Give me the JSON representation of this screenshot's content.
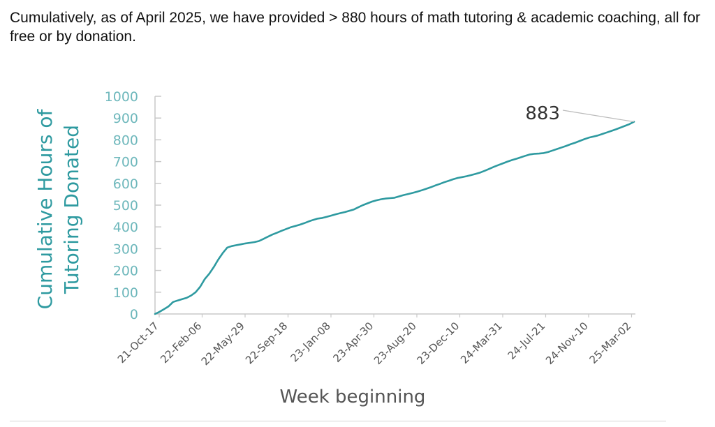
{
  "intro": {
    "text": "Cumulatively, as of April 2025, we have provided > 880 hours of math tutoring & academic coaching, all for free or by donation."
  },
  "colors": {
    "series": "#2E9AA0",
    "axis_line": "#C8C8C8",
    "tick_label": "#6FB8BC",
    "x_tick_label": "#555555",
    "xlabel": "#555555",
    "annotation_text": "#333333",
    "leader_line": "#BBBBBB"
  },
  "chart_data": {
    "type": "line",
    "title": "",
    "xlabel": "Week beginning",
    "ylabel_lines": [
      "Cumulative Hours of",
      "Tutoring Donated"
    ],
    "ylim": [
      0,
      1000
    ],
    "yticks": [
      0,
      100,
      200,
      300,
      400,
      500,
      600,
      700,
      800,
      900,
      1000
    ],
    "xticks": [
      "21-Oct-17",
      "22-Feb-06",
      "22-May-29",
      "22-Sep-18",
      "23-Jan-08",
      "23-Apr-30",
      "23-Aug-20",
      "23-Dec-10",
      "24-Mar-31",
      "24-Jul-21",
      "24-Nov-10",
      "25-Mar-02"
    ],
    "grid": false,
    "legend": "none",
    "annotation": {
      "text": "883",
      "value": 883
    },
    "series": [
      {
        "points": [
          [
            0,
            0
          ],
          [
            1,
            10
          ],
          [
            2,
            22
          ],
          [
            3,
            35
          ],
          [
            4,
            55
          ],
          [
            5,
            62
          ],
          [
            6,
            68
          ],
          [
            7,
            74
          ],
          [
            8,
            85
          ],
          [
            9,
            100
          ],
          [
            10,
            125
          ],
          [
            11,
            160
          ],
          [
            12,
            185
          ],
          [
            13,
            215
          ],
          [
            14,
            250
          ],
          [
            15,
            280
          ],
          [
            16,
            305
          ],
          [
            17,
            312
          ],
          [
            18,
            316
          ],
          [
            19,
            320
          ],
          [
            20,
            324
          ],
          [
            21,
            327
          ],
          [
            22,
            330
          ],
          [
            23,
            335
          ],
          [
            24,
            345
          ],
          [
            25,
            355
          ],
          [
            26,
            365
          ],
          [
            27,
            373
          ],
          [
            28,
            382
          ],
          [
            29,
            390
          ],
          [
            30,
            398
          ],
          [
            31,
            404
          ],
          [
            32,
            410
          ],
          [
            33,
            417
          ],
          [
            34,
            425
          ],
          [
            35,
            432
          ],
          [
            36,
            438
          ],
          [
            37,
            441
          ],
          [
            38,
            446
          ],
          [
            39,
            452
          ],
          [
            40,
            458
          ],
          [
            41,
            463
          ],
          [
            42,
            468
          ],
          [
            43,
            474
          ],
          [
            44,
            480
          ],
          [
            45,
            490
          ],
          [
            46,
            500
          ],
          [
            47,
            508
          ],
          [
            48,
            516
          ],
          [
            49,
            522
          ],
          [
            50,
            527
          ],
          [
            51,
            530
          ],
          [
            52,
            532
          ],
          [
            53,
            534
          ],
          [
            54,
            540
          ],
          [
            55,
            546
          ],
          [
            56,
            551
          ],
          [
            57,
            556
          ],
          [
            58,
            562
          ],
          [
            59,
            568
          ],
          [
            60,
            575
          ],
          [
            61,
            582
          ],
          [
            62,
            590
          ],
          [
            63,
            597
          ],
          [
            64,
            605
          ],
          [
            65,
            612
          ],
          [
            66,
            619
          ],
          [
            67,
            625
          ],
          [
            68,
            629
          ],
          [
            69,
            633
          ],
          [
            70,
            638
          ],
          [
            71,
            644
          ],
          [
            72,
            650
          ],
          [
            73,
            658
          ],
          [
            74,
            667
          ],
          [
            75,
            676
          ],
          [
            76,
            684
          ],
          [
            77,
            692
          ],
          [
            78,
            700
          ],
          [
            79,
            707
          ],
          [
            80,
            713
          ],
          [
            81,
            720
          ],
          [
            82,
            727
          ],
          [
            83,
            733
          ],
          [
            84,
            736
          ],
          [
            85,
            737
          ],
          [
            86,
            739
          ],
          [
            87,
            744
          ],
          [
            88,
            751
          ],
          [
            89,
            758
          ],
          [
            90,
            765
          ],
          [
            91,
            772
          ],
          [
            92,
            780
          ],
          [
            93,
            787
          ],
          [
            94,
            795
          ],
          [
            95,
            803
          ],
          [
            96,
            810
          ],
          [
            97,
            815
          ],
          [
            98,
            820
          ],
          [
            99,
            827
          ],
          [
            100,
            834
          ],
          [
            101,
            841
          ],
          [
            102,
            848
          ],
          [
            103,
            856
          ],
          [
            104,
            864
          ],
          [
            105,
            872
          ],
          [
            106,
            883
          ]
        ]
      }
    ]
  }
}
